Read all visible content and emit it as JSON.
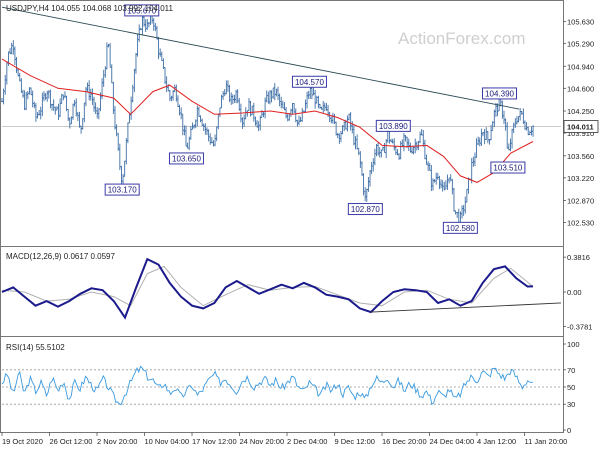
{
  "chart_data": [
    {
      "type": "candlestick",
      "panel": "price",
      "header": "USDJPY,H4  104.055 104.068 103.992 104.011",
      "watermark": "ActionForex.com",
      "ylim": [
        102.2,
        105.9
      ],
      "y_ticks": [
        "105.630",
        "105.290",
        "104.940",
        "104.600",
        "104.250",
        "103.910",
        "103.560",
        "103.220",
        "102.870",
        "102.530"
      ],
      "current_price": "104.011",
      "trendline": [
        [
          0.0,
          105.85
        ],
        [
          0.925,
          104.28
        ]
      ],
      "path": [
        [
          0.0,
          104.4
        ],
        [
          0.01,
          105.1
        ],
        [
          0.02,
          105.3
        ],
        [
          0.03,
          104.7
        ],
        [
          0.04,
          104.35
        ],
        [
          0.05,
          104.6
        ],
        [
          0.06,
          104.15
        ],
        [
          0.07,
          104.3
        ],
        [
          0.08,
          104.6
        ],
        [
          0.09,
          104.35
        ],
        [
          0.1,
          104.2
        ],
        [
          0.11,
          104.55
        ],
        [
          0.12,
          104.05
        ],
        [
          0.13,
          104.45
        ],
        [
          0.14,
          103.9
        ],
        [
          0.15,
          104.6
        ],
        [
          0.16,
          104.5
        ],
        [
          0.17,
          104.1
        ],
        [
          0.18,
          104.7
        ],
        [
          0.19,
          105.3
        ],
        [
          0.2,
          104.2
        ],
        [
          0.21,
          103.45
        ],
        [
          0.215,
          103.17
        ],
        [
          0.22,
          103.55
        ],
        [
          0.23,
          104.4
        ],
        [
          0.24,
          105.15
        ],
        [
          0.25,
          105.67
        ],
        [
          0.26,
          105.55
        ],
        [
          0.27,
          105.7
        ],
        [
          0.28,
          105.2
        ],
        [
          0.29,
          104.8
        ],
        [
          0.3,
          104.45
        ],
        [
          0.31,
          104.6
        ],
        [
          0.32,
          104.2
        ],
        [
          0.33,
          103.65
        ],
        [
          0.34,
          103.95
        ],
        [
          0.35,
          104.3
        ],
        [
          0.36,
          104.05
        ],
        [
          0.37,
          103.85
        ],
        [
          0.38,
          103.7
        ],
        [
          0.39,
          104.35
        ],
        [
          0.4,
          104.65
        ],
        [
          0.41,
          104.4
        ],
        [
          0.42,
          104.55
        ],
        [
          0.43,
          104.1
        ],
        [
          0.44,
          104.35
        ],
        [
          0.45,
          104.2
        ],
        [
          0.46,
          104.0
        ],
        [
          0.47,
          104.35
        ],
        [
          0.48,
          104.5
        ],
        [
          0.49,
          104.55
        ],
        [
          0.5,
          104.3
        ],
        [
          0.51,
          104.15
        ],
        [
          0.52,
          104.4
        ],
        [
          0.53,
          104.0
        ],
        [
          0.54,
          104.25
        ],
        [
          0.55,
          104.57
        ],
        [
          0.56,
          104.45
        ],
        [
          0.57,
          104.2
        ],
        [
          0.58,
          104.35
        ],
        [
          0.59,
          104.15
        ],
        [
          0.6,
          103.9
        ],
        [
          0.61,
          103.95
        ],
        [
          0.62,
          104.15
        ],
        [
          0.63,
          103.8
        ],
        [
          0.64,
          103.5
        ],
        [
          0.65,
          102.87
        ],
        [
          0.66,
          103.4
        ],
        [
          0.67,
          103.7
        ],
        [
          0.68,
          103.55
        ],
        [
          0.69,
          103.89
        ],
        [
          0.7,
          103.7
        ],
        [
          0.71,
          103.6
        ],
        [
          0.72,
          103.8
        ],
        [
          0.73,
          103.65
        ],
        [
          0.74,
          103.75
        ],
        [
          0.75,
          103.89
        ],
        [
          0.76,
          103.45
        ],
        [
          0.77,
          103.1
        ],
        [
          0.78,
          103.3
        ],
        [
          0.79,
          102.95
        ],
        [
          0.8,
          103.3
        ],
        [
          0.81,
          102.7
        ],
        [
          0.82,
          102.58
        ],
        [
          0.83,
          102.9
        ],
        [
          0.84,
          103.4
        ],
        [
          0.85,
          103.7
        ],
        [
          0.86,
          103.95
        ],
        [
          0.87,
          103.8
        ],
        [
          0.88,
          104.2
        ],
        [
          0.89,
          104.39
        ],
        [
          0.9,
          104.1
        ],
        [
          0.905,
          103.51
        ],
        [
          0.91,
          103.8
        ],
        [
          0.92,
          104.15
        ],
        [
          0.93,
          104.2
        ],
        [
          0.94,
          103.95
        ],
        [
          0.95,
          104.011
        ]
      ],
      "ma": [
        [
          0.0,
          105.05
        ],
        [
          0.05,
          104.8
        ],
        [
          0.1,
          104.6
        ],
        [
          0.15,
          104.55
        ],
        [
          0.2,
          104.45
        ],
        [
          0.23,
          104.2
        ],
        [
          0.27,
          104.55
        ],
        [
          0.3,
          104.65
        ],
        [
          0.34,
          104.4
        ],
        [
          0.38,
          104.2
        ],
        [
          0.43,
          104.22
        ],
        [
          0.48,
          104.25
        ],
        [
          0.52,
          104.2
        ],
        [
          0.56,
          104.25
        ],
        [
          0.6,
          104.15
        ],
        [
          0.64,
          104.0
        ],
        [
          0.68,
          103.72
        ],
        [
          0.72,
          103.7
        ],
        [
          0.76,
          103.72
        ],
        [
          0.79,
          103.55
        ],
        [
          0.82,
          103.25
        ],
        [
          0.85,
          103.15
        ],
        [
          0.88,
          103.3
        ],
        [
          0.91,
          103.6
        ],
        [
          0.95,
          103.78
        ]
      ],
      "labels": [
        {
          "text": "105.670",
          "x": 0.25,
          "y": 105.67,
          "pos": "above"
        },
        {
          "text": "104.570",
          "x": 0.55,
          "y": 104.57,
          "pos": "above"
        },
        {
          "text": "104.390",
          "x": 0.89,
          "y": 104.39,
          "pos": "above"
        },
        {
          "text": "103.890",
          "x": 0.7,
          "y": 103.89,
          "pos": "above"
        },
        {
          "text": "103.650",
          "x": 0.33,
          "y": 103.65,
          "pos": "below"
        },
        {
          "text": "103.170",
          "x": 0.215,
          "y": 103.17,
          "pos": "below"
        },
        {
          "text": "102.870",
          "x": 0.65,
          "y": 102.87,
          "pos": "below"
        },
        {
          "text": "102.580",
          "x": 0.82,
          "y": 102.58,
          "pos": "below"
        },
        {
          "text": "103.510",
          "x": 0.905,
          "y": 103.51,
          "pos": "below"
        }
      ]
    },
    {
      "type": "line",
      "panel": "macd",
      "header": "MACD(12,26,9) 0.0617 0.0597",
      "ylim": [
        -0.46,
        0.46
      ],
      "y_ticks": [
        "0.3816",
        "0.00",
        "-0.3781"
      ],
      "macd": [
        [
          0.0,
          0.0
        ],
        [
          0.02,
          0.05
        ],
        [
          0.04,
          -0.05
        ],
        [
          0.06,
          -0.15
        ],
        [
          0.08,
          -0.1
        ],
        [
          0.1,
          -0.16
        ],
        [
          0.12,
          -0.1
        ],
        [
          0.14,
          -0.02
        ],
        [
          0.16,
          0.04
        ],
        [
          0.18,
          0.02
        ],
        [
          0.2,
          -0.1
        ],
        [
          0.22,
          -0.28
        ],
        [
          0.24,
          0.05
        ],
        [
          0.26,
          0.36
        ],
        [
          0.28,
          0.3
        ],
        [
          0.3,
          0.1
        ],
        [
          0.32,
          -0.05
        ],
        [
          0.34,
          -0.15
        ],
        [
          0.36,
          -0.18
        ],
        [
          0.38,
          -0.12
        ],
        [
          0.4,
          0.05
        ],
        [
          0.42,
          0.12
        ],
        [
          0.44,
          0.05
        ],
        [
          0.46,
          -0.02
        ],
        [
          0.48,
          0.03
        ],
        [
          0.5,
          0.08
        ],
        [
          0.52,
          0.04
        ],
        [
          0.54,
          0.1
        ],
        [
          0.56,
          0.05
        ],
        [
          0.58,
          -0.03
        ],
        [
          0.6,
          -0.05
        ],
        [
          0.62,
          -0.08
        ],
        [
          0.64,
          -0.18
        ],
        [
          0.66,
          -0.22
        ],
        [
          0.68,
          -0.1
        ],
        [
          0.7,
          0.0
        ],
        [
          0.72,
          0.03
        ],
        [
          0.74,
          0.02
        ],
        [
          0.76,
          0.0
        ],
        [
          0.78,
          -0.12
        ],
        [
          0.8,
          -0.08
        ],
        [
          0.82,
          -0.15
        ],
        [
          0.84,
          -0.1
        ],
        [
          0.86,
          0.1
        ],
        [
          0.88,
          0.25
        ],
        [
          0.9,
          0.28
        ],
        [
          0.92,
          0.15
        ],
        [
          0.94,
          0.06
        ],
        [
          0.95,
          0.0617
        ]
      ],
      "signal": [
        [
          0.0,
          0.02
        ],
        [
          0.04,
          0.0
        ],
        [
          0.08,
          -0.1
        ],
        [
          0.12,
          -0.08
        ],
        [
          0.16,
          0.0
        ],
        [
          0.2,
          -0.05
        ],
        [
          0.23,
          -0.15
        ],
        [
          0.26,
          0.2
        ],
        [
          0.29,
          0.28
        ],
        [
          0.32,
          0.05
        ],
        [
          0.36,
          -0.15
        ],
        [
          0.4,
          -0.03
        ],
        [
          0.44,
          0.08
        ],
        [
          0.48,
          0.02
        ],
        [
          0.52,
          0.05
        ],
        [
          0.56,
          0.06
        ],
        [
          0.6,
          -0.03
        ],
        [
          0.64,
          -0.12
        ],
        [
          0.68,
          -0.15
        ],
        [
          0.72,
          0.0
        ],
        [
          0.76,
          0.02
        ],
        [
          0.8,
          -0.08
        ],
        [
          0.84,
          -0.12
        ],
        [
          0.88,
          0.15
        ],
        [
          0.91,
          0.26
        ],
        [
          0.95,
          0.0597
        ]
      ],
      "trendline": [
        [
          0.66,
          -0.22
        ],
        [
          1.0,
          -0.12
        ]
      ]
    },
    {
      "type": "line",
      "panel": "rsi",
      "header": "RSI(14) 55.5102",
      "ylim": [
        0,
        100
      ],
      "y_ticks": [
        "100",
        "70",
        "50",
        "30",
        "0"
      ],
      "levels": [
        70,
        50,
        30
      ],
      "path": [
        [
          0.0,
          55
        ],
        [
          0.01,
          65
        ],
        [
          0.02,
          40
        ],
        [
          0.03,
          68
        ],
        [
          0.04,
          42
        ],
        [
          0.05,
          60
        ],
        [
          0.06,
          45
        ],
        [
          0.07,
          55
        ],
        [
          0.08,
          40
        ],
        [
          0.09,
          62
        ],
        [
          0.1,
          45
        ],
        [
          0.11,
          58
        ],
        [
          0.12,
          35
        ],
        [
          0.13,
          55
        ],
        [
          0.14,
          48
        ],
        [
          0.15,
          62
        ],
        [
          0.16,
          52
        ],
        [
          0.17,
          45
        ],
        [
          0.18,
          60
        ],
        [
          0.19,
          50
        ],
        [
          0.2,
          38
        ],
        [
          0.21,
          30
        ],
        [
          0.22,
          42
        ],
        [
          0.23,
          55
        ],
        [
          0.24,
          68
        ],
        [
          0.25,
          72
        ],
        [
          0.26,
          62
        ],
        [
          0.27,
          58
        ],
        [
          0.28,
          48
        ],
        [
          0.29,
          55
        ],
        [
          0.3,
          42
        ],
        [
          0.31,
          50
        ],
        [
          0.32,
          38
        ],
        [
          0.33,
          45
        ],
        [
          0.34,
          52
        ],
        [
          0.35,
          40
        ],
        [
          0.36,
          48
        ],
        [
          0.37,
          58
        ],
        [
          0.38,
          65
        ],
        [
          0.39,
          55
        ],
        [
          0.4,
          60
        ],
        [
          0.41,
          52
        ],
        [
          0.42,
          45
        ],
        [
          0.43,
          58
        ],
        [
          0.44,
          62
        ],
        [
          0.45,
          50
        ],
        [
          0.46,
          55
        ],
        [
          0.47,
          60
        ],
        [
          0.48,
          52
        ],
        [
          0.49,
          58
        ],
        [
          0.5,
          48
        ],
        [
          0.51,
          55
        ],
        [
          0.52,
          62
        ],
        [
          0.53,
          50
        ],
        [
          0.54,
          45
        ],
        [
          0.55,
          55
        ],
        [
          0.56,
          48
        ],
        [
          0.57,
          40
        ],
        [
          0.58,
          52
        ],
        [
          0.59,
          45
        ],
        [
          0.6,
          55
        ],
        [
          0.61,
          42
        ],
        [
          0.62,
          50
        ],
        [
          0.63,
          38
        ],
        [
          0.64,
          45
        ],
        [
          0.65,
          35
        ],
        [
          0.66,
          52
        ],
        [
          0.67,
          60
        ],
        [
          0.68,
          55
        ],
        [
          0.69,
          62
        ],
        [
          0.7,
          50
        ],
        [
          0.71,
          58
        ],
        [
          0.72,
          45
        ],
        [
          0.73,
          55
        ],
        [
          0.74,
          48
        ],
        [
          0.75,
          40
        ],
        [
          0.76,
          45
        ],
        [
          0.77,
          32
        ],
        [
          0.78,
          45
        ],
        [
          0.79,
          38
        ],
        [
          0.8,
          48
        ],
        [
          0.81,
          35
        ],
        [
          0.82,
          42
        ],
        [
          0.83,
          55
        ],
        [
          0.84,
          62
        ],
        [
          0.85,
          58
        ],
        [
          0.86,
          68
        ],
        [
          0.87,
          62
        ],
        [
          0.88,
          72
        ],
        [
          0.89,
          65
        ],
        [
          0.9,
          60
        ],
        [
          0.91,
          70
        ],
        [
          0.92,
          62
        ],
        [
          0.93,
          50
        ],
        [
          0.94,
          58
        ],
        [
          0.95,
          55.51
        ]
      ]
    }
  ],
  "x_labels": [
    "19 Oct 2020",
    "26 Oct 12:00",
    "2 Nov 20:00",
    "10 Nov 04:00",
    "17 Nov 12:00",
    "24 Nov 20:00",
    "2 Dec 04:00",
    "9 Dec 12:00",
    "16 Dec 20:00",
    "24 Dec 04:00",
    "4 Jan 12:00",
    "11 Jan 20:00"
  ],
  "colors": {
    "candles": "#3d6ea6",
    "ma": "#e02020",
    "trendline": "#2a4a55",
    "macd": "#1a1a8c",
    "signal": "#b0b0b0",
    "rsi": "#3a9ae0",
    "level": "#999999",
    "price_box_bg": "#ffffff"
  }
}
